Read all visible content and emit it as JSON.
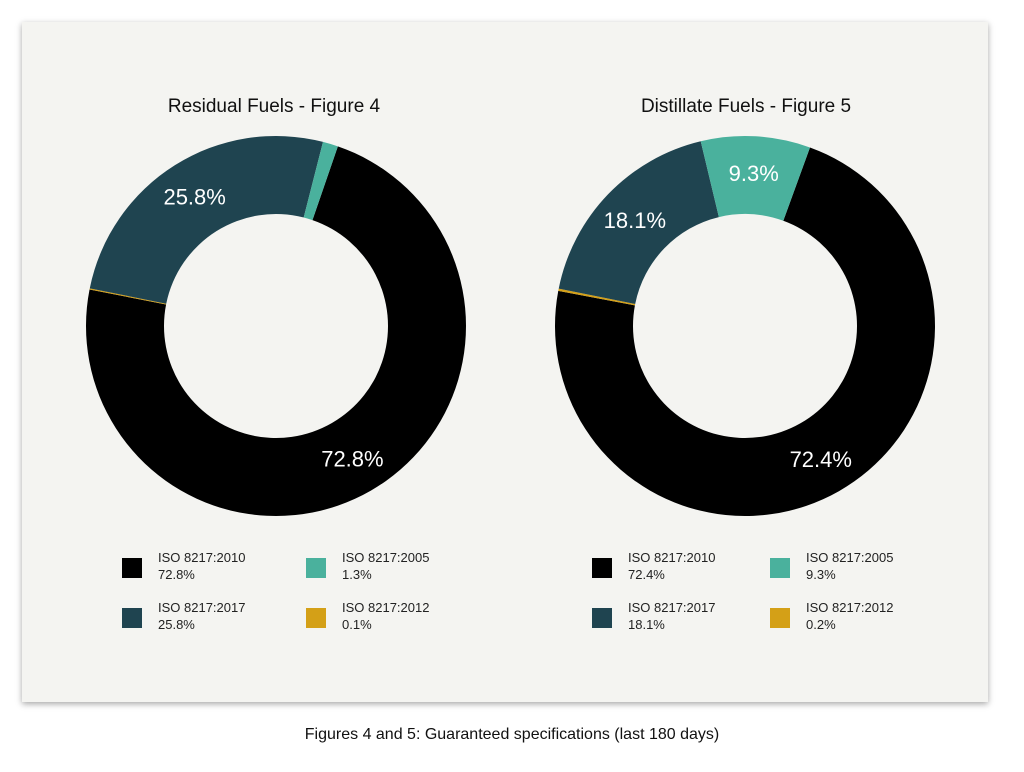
{
  "caption": "Figures 4 and 5: Guaranteed specifications (last 180 days)",
  "chart_data": [
    {
      "type": "pie",
      "title": "Residual Fuels - Figure 4",
      "slices": [
        {
          "name": "ISO 8217:2010",
          "value": 72.8,
          "label": "72.8%",
          "legend_value": "72.8%",
          "color": "#000000"
        },
        {
          "name": "ISO 8217:2012",
          "value": 0.1,
          "label": "",
          "legend_value": "0.1%",
          "color": "#d4a017"
        },
        {
          "name": "ISO 8217:2017",
          "value": 25.8,
          "label": "25.8%",
          "legend_value": "25.8%",
          "color": "#1f4450"
        },
        {
          "name": "ISO 8217:2005",
          "value": 1.3,
          "label": "",
          "legend_value": "1.3%",
          "color": "#4ab19d"
        }
      ],
      "legend": [
        {
          "name": "ISO 8217:2010",
          "value": "72.8%",
          "color": "#000000"
        },
        {
          "name": "ISO 8217:2005",
          "value": "1.3%",
          "color": "#4ab19d"
        },
        {
          "name": "ISO 8217:2017",
          "value": "25.8%",
          "color": "#1f4450"
        },
        {
          "name": "ISO 8217:2012",
          "value": "0.1%",
          "color": "#d4a017"
        }
      ],
      "legend_placement": "bottom"
    },
    {
      "type": "pie",
      "title": "Distillate Fuels - Figure 5",
      "slices": [
        {
          "name": "ISO 8217:2010",
          "value": 72.4,
          "label": "72.4%",
          "legend_value": "72.4%",
          "color": "#000000"
        },
        {
          "name": "ISO 8217:2012",
          "value": 0.2,
          "label": "",
          "legend_value": "0.2%",
          "color": "#d4a017"
        },
        {
          "name": "ISO 8217:2017",
          "value": 18.1,
          "label": "18.1%",
          "legend_value": "18.1%",
          "color": "#1f4450"
        },
        {
          "name": "ISO 8217:2005",
          "value": 9.3,
          "label": "9.3%",
          "legend_value": "9.3%",
          "color": "#4ab19d"
        }
      ],
      "legend": [
        {
          "name": "ISO 8217:2010",
          "value": "72.4%",
          "color": "#000000"
        },
        {
          "name": "ISO 8217:2005",
          "value": "9.3%",
          "color": "#4ab19d"
        },
        {
          "name": "ISO 8217:2017",
          "value": "18.1%",
          "color": "#1f4450"
        },
        {
          "name": "ISO 8217:2012",
          "value": "0.2%",
          "color": "#d4a017"
        }
      ],
      "legend_placement": "bottom"
    }
  ]
}
